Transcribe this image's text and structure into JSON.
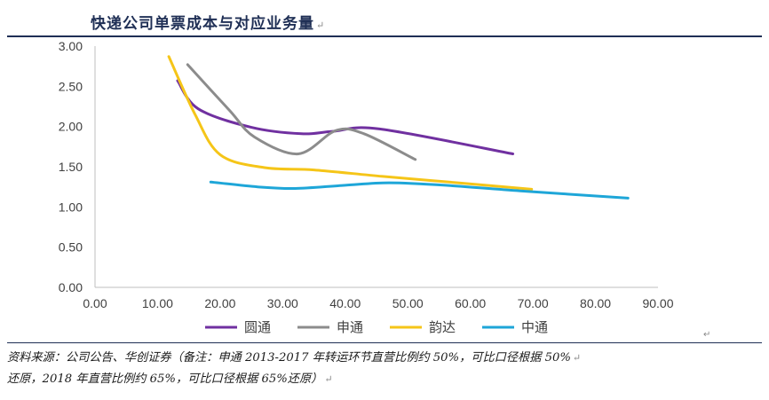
{
  "title": "快递公司单票成本与对应业务量",
  "note": {
    "line1": "资料来源：公司公告、华创证券（备注：申通 2013-2017 年转运环节直营比例约 50%，可比口径根据 50%",
    "line2": "还原，2018 年直营比例约 65%，可比口径根据 65%还原）"
  },
  "colors": {
    "title": "#1f2f55",
    "axis": "#bfbfbf",
    "text": "#404040"
  },
  "chart_data": {
    "type": "line",
    "title": "",
    "xlabel": "",
    "ylabel": "",
    "xlim": [
      0,
      90
    ],
    "ylim": [
      0,
      3
    ],
    "x_ticks": [
      "0.00",
      "10.00",
      "20.00",
      "30.00",
      "40.00",
      "50.00",
      "60.00",
      "70.00",
      "80.00",
      "90.00"
    ],
    "y_ticks": [
      "0.00",
      "0.50",
      "1.00",
      "1.50",
      "2.00",
      "2.50",
      "3.00"
    ],
    "legend_position": "bottom",
    "series": [
      {
        "name": "圆通",
        "color": "#7030a0",
        "x": [
          13.2,
          16.5,
          25,
          33,
          38,
          45.5,
          66.8
        ],
        "y": [
          2.57,
          2.22,
          1.99,
          1.91,
          1.94,
          1.97,
          1.66
        ]
      },
      {
        "name": "申通",
        "color": "#8c8c8c",
        "x": [
          14.8,
          21.5,
          25.5,
          32.5,
          38.5,
          43,
          51.2
        ],
        "y": [
          2.77,
          2.2,
          1.87,
          1.66,
          1.95,
          1.91,
          1.59
        ]
      },
      {
        "name": "韵达",
        "color": "#f5c518",
        "x": [
          11.8,
          16,
          20,
          27,
          35,
          46,
          58,
          69.8
        ],
        "y": [
          2.87,
          2.15,
          1.65,
          1.49,
          1.46,
          1.38,
          1.3,
          1.22
        ]
      },
      {
        "name": "中通",
        "color": "#1ea6d8",
        "x": [
          18.5,
          26,
          32,
          40,
          47,
          56,
          68,
          85.2
        ],
        "y": [
          1.31,
          1.25,
          1.23,
          1.27,
          1.3,
          1.27,
          1.2,
          1.11
        ]
      }
    ]
  }
}
